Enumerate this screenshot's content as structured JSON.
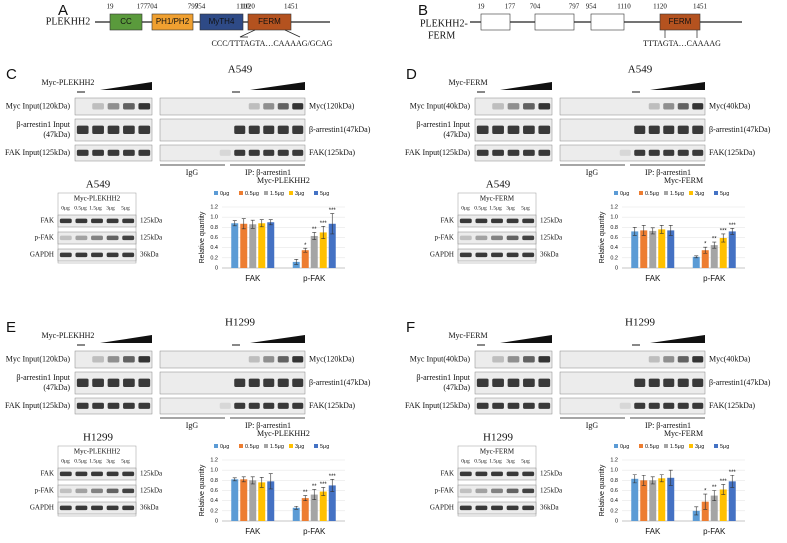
{
  "panel_a": {
    "label": "A",
    "protein": "PLEKHH2",
    "positions": [
      19,
      177,
      704,
      797,
      954,
      1110,
      1120,
      1451
    ],
    "domains": [
      "CC",
      "PH1/PH2",
      "MyTH4",
      "FERM"
    ],
    "sequence": "CCC/TTTAGTA…CAAAAG/GCAG"
  },
  "panel_b": {
    "label": "B",
    "protein_lines": [
      "PLEKHH2-",
      "FERM"
    ],
    "positions": [
      19,
      177,
      704,
      797,
      954,
      1110,
      1120,
      1451
    ],
    "domain": "FERM",
    "sequence": "TTTAGTA…CAAAAG"
  },
  "panels": [
    {
      "label": "C",
      "cell": "A549",
      "construct": "Myc-PLEKHH2",
      "input_labels": [
        [
          "Myc Input(120kDa)"
        ],
        [
          "β-arrestin1 Input",
          "(47kDa)"
        ],
        [
          "FAK Input(125kDa)"
        ]
      ],
      "ip_labels": [
        "Myc(120kDa)",
        "β-arrestin1(47kDa)",
        "FAK(125kDa)"
      ],
      "igg": "IgG",
      "ip": "IP: β-arrestin1",
      "cell2": "A549",
      "construct2": "Myc-PLEKHH2",
      "doses": [
        "0μg",
        "0.5μg",
        "1.5μg",
        "3μg",
        "5μg"
      ],
      "blot_labels": [
        "FAK",
        "p-FAK",
        "GAPDH"
      ],
      "kda": [
        "125kDa",
        "125kDa",
        "36kDa"
      ]
    },
    {
      "label": "D",
      "cell": "A549",
      "construct": "Myc-FERM",
      "input_labels": [
        [
          "Myc Input(40kDa)"
        ],
        [
          "β-arrestin1 Input",
          "(47kDa)"
        ],
        [
          "FAK Input(125kDa)"
        ]
      ],
      "ip_labels": [
        "Myc(40kDa)",
        "β-arrestin1(47kDa)",
        "FAK(125kDa)"
      ],
      "igg": "IgG",
      "ip": "IP: β-arrestin1",
      "cell2": "A549",
      "construct2": "Myc-FERM",
      "doses": [
        "0μg",
        "0.5μg",
        "1.5μg",
        "3μg",
        "5μg"
      ],
      "blot_labels": [
        "FAK",
        "p-FAK",
        "GAPDH"
      ],
      "kda": [
        "125kDa",
        "125kDa",
        "36kDa"
      ]
    },
    {
      "label": "E",
      "cell": "H1299",
      "construct": "Myc-PLEKHH2",
      "input_labels": [
        [
          "Myc Input(120kDa)"
        ],
        [
          "β-arrestin1 Input",
          "(47kDa)"
        ],
        [
          "FAK Input(125kDa)"
        ]
      ],
      "ip_labels": [
        "Myc(120kDa)",
        "β-arrestin1(47kDa)",
        "FAK(125kDa)"
      ],
      "igg": "IgG",
      "ip": "IP: β-arrestin1",
      "cell2": "H1299",
      "construct2": "Myc-PLEKHH2",
      "doses": [
        "0μg",
        "0.5μg",
        "1.5μg",
        "3μg",
        "5μg"
      ],
      "blot_labels": [
        "FAK",
        "p-FAK",
        "GAPDH"
      ],
      "kda": [
        "125kDa",
        "125kDa",
        "36kDa"
      ]
    },
    {
      "label": "F",
      "cell": "H1299",
      "construct": "Myc-FERM",
      "input_labels": [
        [
          "Myc Input(40kDa)"
        ],
        [
          "β-arrestin1 Input",
          "(47kDa)"
        ],
        [
          "FAK Input(125kDa)"
        ]
      ],
      "ip_labels": [
        "Myc(40kDa)",
        "β-arrestin1(47kDa)",
        "FAK(125kDa)"
      ],
      "igg": "IgG",
      "ip": "IP: β-arrestin1",
      "cell2": "H1299",
      "construct2": "Myc-FERM",
      "doses": [
        "0μg",
        "0.5μg",
        "1.5μg",
        "3μg",
        "5μg"
      ],
      "blot_labels": [
        "FAK",
        "p-FAK",
        "GAPDH"
      ],
      "kda": [
        "125kDa",
        "125kDa",
        "36kDa"
      ]
    }
  ],
  "chart_data": [
    {
      "type": "bar",
      "title": "Myc-PLEKHH2",
      "y_label": "Relative quantity",
      "categories": [
        "FAK",
        "p-FAK"
      ],
      "ylim": [
        0,
        1.2
      ],
      "yticks": [
        0,
        0.2,
        0.4,
        0.6,
        0.8,
        {
          "value": 1,
          "label": "1.0"
        },
        1.2
      ],
      "series": [
        {
          "name": "0μg",
          "color": "#5b9bd5",
          "values": [
            0.88,
            0.12
          ],
          "errors": [
            0.05,
            0.05
          ],
          "stars": [
            null,
            null
          ]
        },
        {
          "name": "0.5μg",
          "color": "#ed7d31",
          "values": [
            0.87,
            0.35
          ],
          "errors": [
            0.1,
            0.04
          ],
          "stars": [
            null,
            "*"
          ]
        },
        {
          "name": "1.5μg",
          "color": "#a5a5a5",
          "values": [
            0.86,
            0.63
          ],
          "errors": [
            0.08,
            0.07
          ],
          "stars": [
            null,
            "**"
          ]
        },
        {
          "name": "3μg",
          "color": "#ffc000",
          "values": [
            0.88,
            0.7
          ],
          "errors": [
            0.07,
            0.12
          ],
          "stars": [
            null,
            "***"
          ]
        },
        {
          "name": "5μg",
          "color": "#4472c4",
          "values": [
            0.9,
            0.87
          ],
          "errors": [
            0.05,
            0.2
          ],
          "stars": [
            null,
            "***"
          ]
        }
      ]
    },
    {
      "type": "bar",
      "title": "Myc-FERM",
      "y_label": "Relative quantity",
      "categories": [
        "FAK",
        "p-FAK"
      ],
      "ylim": [
        0,
        1.2
      ],
      "yticks": [
        0,
        0.2,
        0.4,
        0.6,
        0.8,
        {
          "value": 1,
          "label": "1.0"
        },
        1.2
      ],
      "series": [
        {
          "name": "0μg",
          "color": "#5b9bd5",
          "values": [
            0.72,
            0.22
          ],
          "errors": [
            0.08,
            0.02
          ],
          "stars": [
            null,
            null
          ]
        },
        {
          "name": "0.5μg",
          "color": "#ed7d31",
          "values": [
            0.74,
            0.35
          ],
          "errors": [
            0.1,
            0.06
          ],
          "stars": [
            null,
            "*"
          ]
        },
        {
          "name": "1.5μg",
          "color": "#a5a5a5",
          "values": [
            0.73,
            0.45
          ],
          "errors": [
            0.06,
            0.06
          ],
          "stars": [
            null,
            "**"
          ]
        },
        {
          "name": "3μg",
          "color": "#ffc000",
          "values": [
            0.76,
            0.59
          ],
          "errors": [
            0.08,
            0.08
          ],
          "stars": [
            null,
            "***"
          ]
        },
        {
          "name": "5μg",
          "color": "#4472c4",
          "values": [
            0.74,
            0.72
          ],
          "errors": [
            0.1,
            0.06
          ],
          "stars": [
            null,
            "***"
          ]
        }
      ]
    },
    {
      "type": "bar",
      "title": "Myc-PLEKHH2",
      "y_label": "Relative quantity",
      "categories": [
        "FAK",
        "p-FAK"
      ],
      "ylim": [
        0,
        1.2
      ],
      "yticks": [
        0,
        0.2,
        0.4,
        0.6,
        0.8,
        {
          "value": 1,
          "label": "1.0"
        },
        1.2
      ],
      "series": [
        {
          "name": "0μg",
          "color": "#5b9bd5",
          "values": [
            0.82,
            0.26
          ],
          "errors": [
            0.03,
            0.03
          ],
          "stars": [
            null,
            null
          ]
        },
        {
          "name": "0.5μg",
          "color": "#ed7d31",
          "values": [
            0.82,
            0.45
          ],
          "errors": [
            0.05,
            0.05
          ],
          "stars": [
            null,
            "**"
          ]
        },
        {
          "name": "1.5μg",
          "color": "#a5a5a5",
          "values": [
            0.8,
            0.52
          ],
          "errors": [
            0.07,
            0.1
          ],
          "stars": [
            null,
            "**"
          ]
        },
        {
          "name": "3μg",
          "color": "#ffc000",
          "values": [
            0.76,
            0.58
          ],
          "errors": [
            0.1,
            0.08
          ],
          "stars": [
            null,
            "***"
          ]
        },
        {
          "name": "5μg",
          "color": "#4472c4",
          "values": [
            0.78,
            0.7
          ],
          "errors": [
            0.15,
            0.12
          ],
          "stars": [
            null,
            "***"
          ]
        }
      ]
    },
    {
      "type": "bar",
      "title": "Myc-FERM",
      "y_label": "Relative quantity",
      "categories": [
        "FAK",
        "p-FAK"
      ],
      "ylim": [
        0,
        1.2
      ],
      "yticks": [
        0,
        0.2,
        0.4,
        0.6,
        0.8,
        {
          "value": 1,
          "label": "1.0"
        },
        1.2
      ],
      "series": [
        {
          "name": "0μg",
          "color": "#5b9bd5",
          "values": [
            0.83,
            0.2
          ],
          "errors": [
            0.08,
            0.08
          ],
          "stars": [
            null,
            null
          ]
        },
        {
          "name": "0.5μg",
          "color": "#ed7d31",
          "values": [
            0.8,
            0.38
          ],
          "errors": [
            0.1,
            0.15
          ],
          "stars": [
            null,
            "*"
          ]
        },
        {
          "name": "1.5μg",
          "color": "#a5a5a5",
          "values": [
            0.8,
            0.5
          ],
          "errors": [
            0.07,
            0.1
          ],
          "stars": [
            null,
            "**"
          ]
        },
        {
          "name": "3μg",
          "color": "#ffc000",
          "values": [
            0.84,
            0.62
          ],
          "errors": [
            0.07,
            0.1
          ],
          "stars": [
            null,
            "***"
          ]
        },
        {
          "name": "5μg",
          "color": "#4472c4",
          "values": [
            0.85,
            0.78
          ],
          "errors": [
            0.15,
            0.12
          ],
          "stars": [
            null,
            "***"
          ]
        }
      ]
    }
  ]
}
